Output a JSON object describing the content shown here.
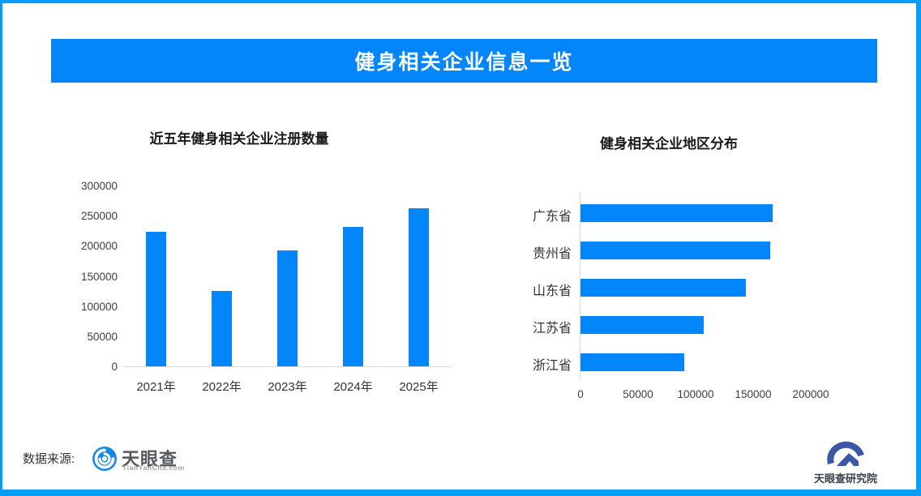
{
  "banner": {
    "title": "健身相关企业信息一览"
  },
  "colors": {
    "primary_blue": "#0486fb",
    "page_border_blue": "#099ef5",
    "bar_blue": "#0486fb",
    "axis_line_gray": "#d9d9d9",
    "axis_text": "#3d3d3d"
  },
  "chart_data": [
    {
      "type": "bar",
      "title": "近五年健身相关企业注册数量",
      "categories": [
        "2021年",
        "2022年",
        "2023年",
        "2024年",
        "2025年"
      ],
      "values": [
        223000,
        125000,
        192000,
        232000,
        262000
      ],
      "xlabel": "",
      "ylabel": "",
      "ylim": [
        0,
        300000
      ],
      "yticks": [
        0,
        50000,
        100000,
        150000,
        200000,
        250000,
        300000
      ],
      "grid": false,
      "legend": "none",
      "bar_color": "#0486fb"
    },
    {
      "type": "bar-horizontal",
      "title": "健身相关企业地区分布",
      "categories": [
        "广东省",
        "贵州省",
        "山东省",
        "江苏省",
        "浙江省"
      ],
      "values": [
        167000,
        165000,
        144000,
        107000,
        90000
      ],
      "xlabel": "",
      "ylabel": "",
      "xlim": [
        0,
        250000
      ],
      "xticks": [
        0,
        50000,
        100000,
        150000,
        200000
      ],
      "grid": false,
      "legend": "none",
      "bar_color": "#0486fb"
    }
  ],
  "footer": {
    "source_label": "数据来源:",
    "tyc_logo": {
      "name": "天眼查",
      "domain": "TianYanCha.com"
    },
    "research_logo": {
      "name": "天眼查研究院"
    }
  }
}
